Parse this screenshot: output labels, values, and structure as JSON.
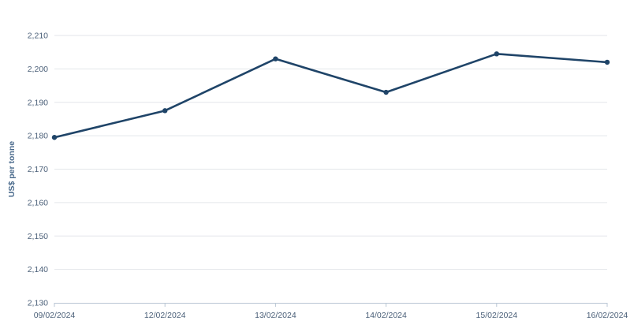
{
  "chart_data": {
    "type": "line",
    "title": "",
    "xlabel": "",
    "ylabel": "US$ per tonne",
    "categories": [
      "09/02/2024",
      "12/02/2024",
      "13/02/2024",
      "14/02/2024",
      "15/02/2024",
      "16/02/2024"
    ],
    "series": [
      {
        "values": [
          2179.5,
          2187.5,
          2203,
          2193,
          2204.5,
          2202
        ],
        "color": "#1f4468"
      }
    ],
    "ylim": [
      2130,
      2210
    ],
    "yticks": [
      2130,
      2140,
      2150,
      2160,
      2170,
      2180,
      2190,
      2200,
      2210
    ],
    "ytick_labels": [
      "2,130",
      "2,140",
      "2,150",
      "2,160",
      "2,170",
      "2,180",
      "2,190",
      "2,200",
      "2,210"
    ],
    "grid": true,
    "legend": "none"
  }
}
